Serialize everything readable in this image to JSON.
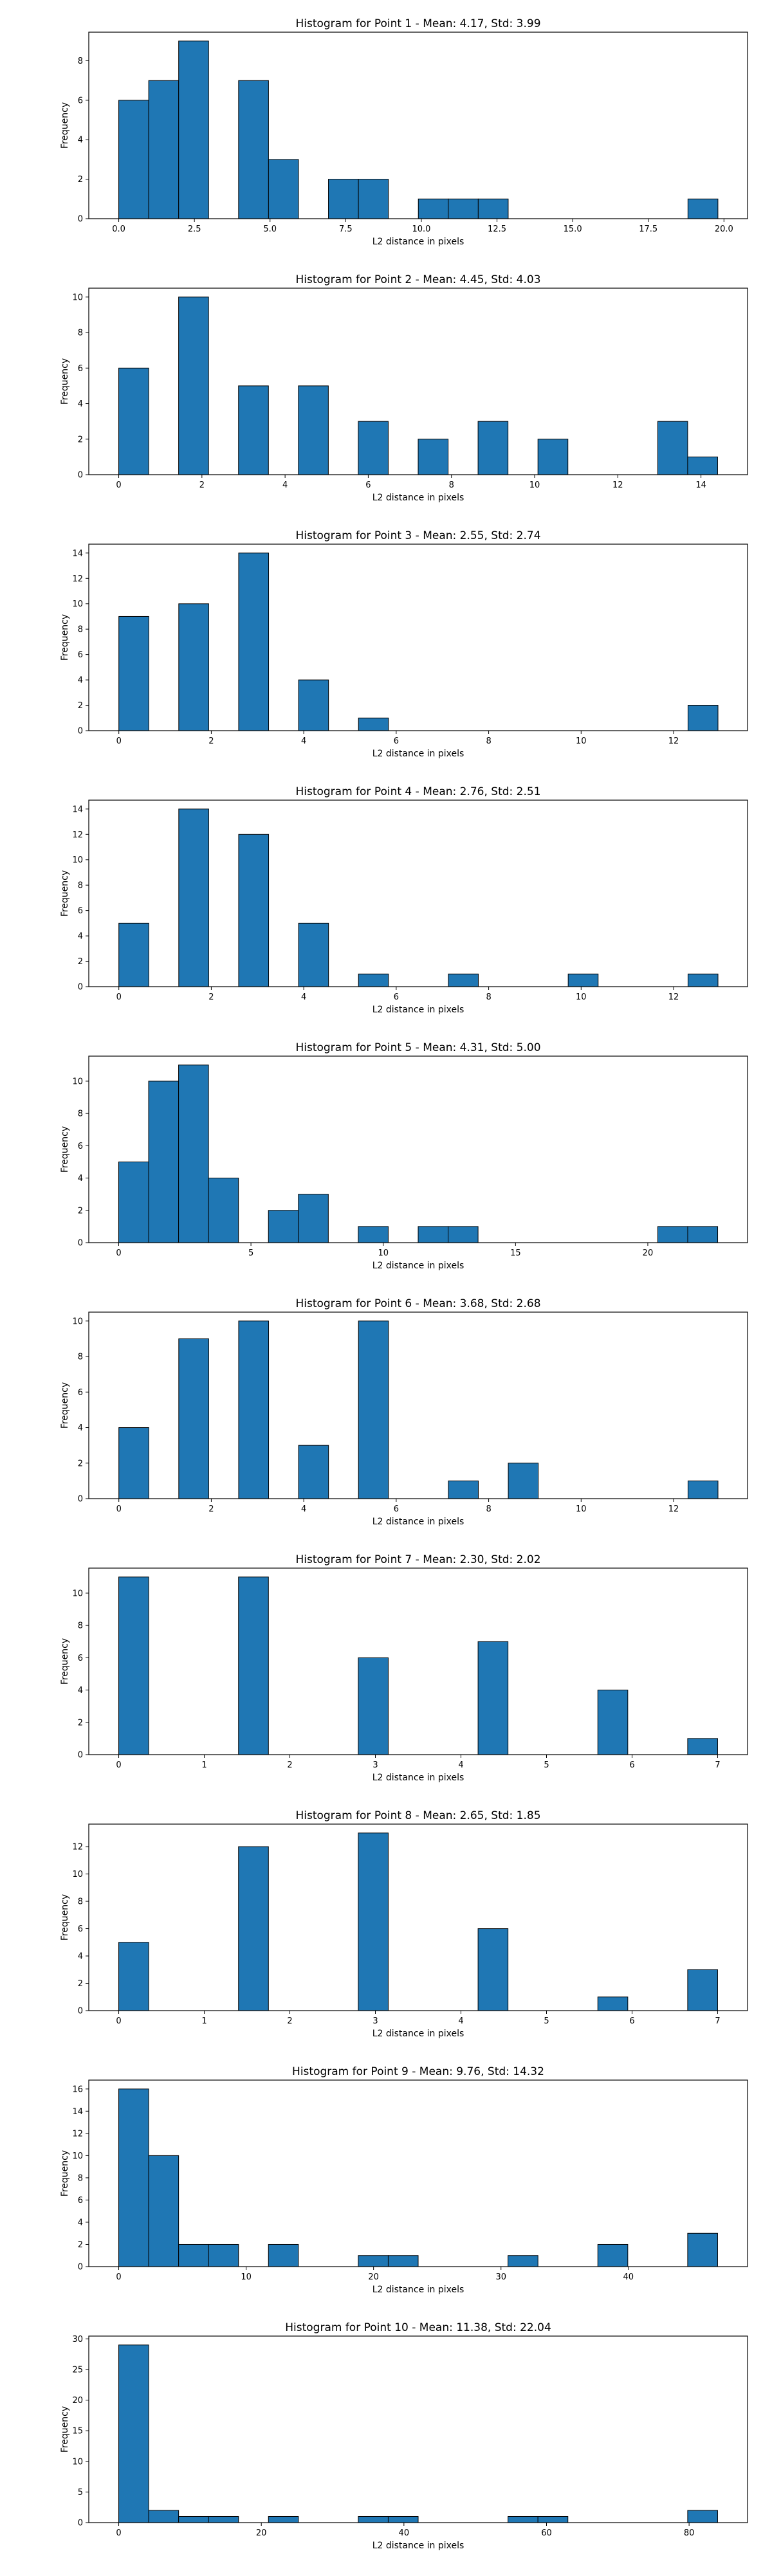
{
  "colors": {
    "bar": "#1f77b4",
    "edge": "#000000",
    "axes": "#000000",
    "background": "#ffffff"
  },
  "chart_data": [
    {
      "type": "bar",
      "title": "Histogram for Point 1 - Mean: 4.17, Std: 3.99",
      "xlabel": "L2 distance in pixels",
      "ylabel": "Frequency",
      "xlim": [
        -0.99,
        20.78
      ],
      "ylim": [
        0,
        9.45
      ],
      "xticks": [
        {
          "v": 0,
          "t": "0.0"
        },
        {
          "v": 2.5,
          "t": "2.5"
        },
        {
          "v": 5,
          "t": "5.0"
        },
        {
          "v": 7.5,
          "t": "7.5"
        },
        {
          "v": 10,
          "t": "10.0"
        },
        {
          "v": 12.5,
          "t": "12.5"
        },
        {
          "v": 15,
          "t": "15.0"
        },
        {
          "v": 17.5,
          "t": "17.5"
        },
        {
          "v": 20,
          "t": "20.0"
        }
      ],
      "yticks": [
        {
          "v": 0,
          "t": "0"
        },
        {
          "v": 2,
          "t": "2"
        },
        {
          "v": 4,
          "t": "4"
        },
        {
          "v": 6,
          "t": "6"
        },
        {
          "v": 8,
          "t": "8"
        }
      ],
      "bins": [
        0,
        0.99,
        1.98,
        2.97,
        3.96,
        4.95,
        5.94,
        6.93,
        7.92,
        8.91,
        9.9,
        10.89,
        11.88,
        12.87,
        13.86,
        14.85,
        15.84,
        16.83,
        17.82,
        18.81,
        19.8
      ],
      "counts": [
        6,
        7,
        9,
        0,
        7,
        3,
        0,
        2,
        2,
        0,
        1,
        1,
        1,
        0,
        0,
        0,
        0,
        0,
        0,
        1
      ]
    },
    {
      "type": "bar",
      "title": "Histogram for Point 2 - Mean: 4.45, Std: 4.03",
      "xlabel": "L2 distance in pixels",
      "ylabel": "Frequency",
      "xlim": [
        -0.72,
        15.12
      ],
      "ylim": [
        0,
        10.5
      ],
      "xticks": [
        {
          "v": 0,
          "t": "0"
        },
        {
          "v": 2,
          "t": "2"
        },
        {
          "v": 4,
          "t": "4"
        },
        {
          "v": 6,
          "t": "6"
        },
        {
          "v": 8,
          "t": "8"
        },
        {
          "v": 10,
          "t": "10"
        },
        {
          "v": 12,
          "t": "12"
        },
        {
          "v": 14,
          "t": "14"
        }
      ],
      "yticks": [
        {
          "v": 0,
          "t": "0"
        },
        {
          "v": 2,
          "t": "2"
        },
        {
          "v": 4,
          "t": "4"
        },
        {
          "v": 6,
          "t": "6"
        },
        {
          "v": 8,
          "t": "8"
        },
        {
          "v": 10,
          "t": "10"
        }
      ],
      "bins": [
        0,
        0.72,
        1.44,
        2.16,
        2.88,
        3.6,
        4.32,
        5.04,
        5.76,
        6.48,
        7.2,
        7.92,
        8.64,
        9.36,
        10.08,
        10.8,
        11.52,
        12.24,
        12.96,
        13.68,
        14.4
      ],
      "counts": [
        6,
        0,
        10,
        0,
        5,
        0,
        5,
        0,
        3,
        0,
        2,
        0,
        3,
        0,
        2,
        0,
        0,
        0,
        3,
        1
      ]
    },
    {
      "type": "bar",
      "title": "Histogram for Point 3 - Mean: 2.55, Std: 2.74",
      "xlabel": "L2 distance in pixels",
      "ylabel": "Frequency",
      "xlim": [
        -0.65,
        13.6
      ],
      "ylim": [
        0,
        14.7
      ],
      "xticks": [
        {
          "v": 0,
          "t": "0"
        },
        {
          "v": 2,
          "t": "2"
        },
        {
          "v": 4,
          "t": "4"
        },
        {
          "v": 6,
          "t": "6"
        },
        {
          "v": 8,
          "t": "8"
        },
        {
          "v": 10,
          "t": "10"
        },
        {
          "v": 12,
          "t": "12"
        }
      ],
      "yticks": [
        {
          "v": 0,
          "t": "0"
        },
        {
          "v": 2,
          "t": "2"
        },
        {
          "v": 4,
          "t": "4"
        },
        {
          "v": 6,
          "t": "6"
        },
        {
          "v": 8,
          "t": "8"
        },
        {
          "v": 10,
          "t": "10"
        },
        {
          "v": 12,
          "t": "12"
        },
        {
          "v": 14,
          "t": "14"
        }
      ],
      "bins": [
        0,
        0.648,
        1.296,
        1.944,
        2.592,
        3.24,
        3.888,
        4.536,
        5.184,
        5.832,
        6.48,
        7.128,
        7.776,
        8.424,
        9.072,
        9.72,
        10.368,
        11.016,
        11.664,
        12.312,
        12.96
      ],
      "counts": [
        9,
        0,
        10,
        0,
        14,
        0,
        4,
        0,
        1,
        0,
        0,
        0,
        0,
        0,
        0,
        0,
        0,
        0,
        0,
        2
      ]
    },
    {
      "type": "bar",
      "title": "Histogram for Point 4 - Mean: 2.76, Std: 2.51",
      "xlabel": "L2 distance in pixels",
      "ylabel": "Frequency",
      "xlim": [
        -0.65,
        13.6
      ],
      "ylim": [
        0,
        14.7
      ],
      "xticks": [
        {
          "v": 0,
          "t": "0"
        },
        {
          "v": 2,
          "t": "2"
        },
        {
          "v": 4,
          "t": "4"
        },
        {
          "v": 6,
          "t": "6"
        },
        {
          "v": 8,
          "t": "8"
        },
        {
          "v": 10,
          "t": "10"
        },
        {
          "v": 12,
          "t": "12"
        }
      ],
      "yticks": [
        {
          "v": 0,
          "t": "0"
        },
        {
          "v": 2,
          "t": "2"
        },
        {
          "v": 4,
          "t": "4"
        },
        {
          "v": 6,
          "t": "6"
        },
        {
          "v": 8,
          "t": "8"
        },
        {
          "v": 10,
          "t": "10"
        },
        {
          "v": 12,
          "t": "12"
        },
        {
          "v": 14,
          "t": "14"
        }
      ],
      "bins": [
        0,
        0.648,
        1.296,
        1.944,
        2.592,
        3.24,
        3.888,
        4.536,
        5.184,
        5.832,
        6.48,
        7.128,
        7.776,
        8.424,
        9.072,
        9.72,
        10.368,
        11.016,
        11.664,
        12.312,
        12.96
      ],
      "counts": [
        5,
        0,
        14,
        0,
        12,
        0,
        5,
        0,
        1,
        0,
        0,
        1,
        0,
        0,
        0,
        1,
        0,
        0,
        0,
        1
      ]
    },
    {
      "type": "bar",
      "title": "Histogram for Point 5 - Mean: 4.31, Std: 5.00",
      "xlabel": "L2 distance in pixels",
      "ylabel": "Frequency",
      "xlim": [
        -1.13,
        23.77
      ],
      "ylim": [
        0,
        11.55
      ],
      "xticks": [
        {
          "v": 0,
          "t": "0"
        },
        {
          "v": 5,
          "t": "5"
        },
        {
          "v": 10,
          "t": "10"
        },
        {
          "v": 15,
          "t": "15"
        },
        {
          "v": 20,
          "t": "20"
        }
      ],
      "yticks": [
        {
          "v": 0,
          "t": "0"
        },
        {
          "v": 2,
          "t": "2"
        },
        {
          "v": 4,
          "t": "4"
        },
        {
          "v": 6,
          "t": "6"
        },
        {
          "v": 8,
          "t": "8"
        },
        {
          "v": 10,
          "t": "10"
        }
      ],
      "bins": [
        0,
        1.132,
        2.264,
        3.396,
        4.528,
        5.66,
        6.792,
        7.924,
        9.056,
        10.188,
        11.32,
        12.452,
        13.584,
        14.716,
        15.848,
        16.98,
        18.112,
        19.244,
        20.376,
        21.508,
        22.64
      ],
      "counts": [
        5,
        10,
        11,
        4,
        0,
        2,
        3,
        0,
        1,
        0,
        1,
        1,
        0,
        0,
        0,
        0,
        0,
        0,
        1,
        1
      ]
    },
    {
      "type": "bar",
      "title": "Histogram for Point 6 - Mean: 3.68, Std: 2.68",
      "xlabel": "L2 distance in pixels",
      "ylabel": "Frequency",
      "xlim": [
        -0.65,
        13.6
      ],
      "ylim": [
        0,
        10.5
      ],
      "xticks": [
        {
          "v": 0,
          "t": "0"
        },
        {
          "v": 2,
          "t": "2"
        },
        {
          "v": 4,
          "t": "4"
        },
        {
          "v": 6,
          "t": "6"
        },
        {
          "v": 8,
          "t": "8"
        },
        {
          "v": 10,
          "t": "10"
        },
        {
          "v": 12,
          "t": "12"
        }
      ],
      "yticks": [
        {
          "v": 0,
          "t": "0"
        },
        {
          "v": 2,
          "t": "2"
        },
        {
          "v": 4,
          "t": "4"
        },
        {
          "v": 6,
          "t": "6"
        },
        {
          "v": 8,
          "t": "8"
        },
        {
          "v": 10,
          "t": "10"
        }
      ],
      "bins": [
        0,
        0.648,
        1.296,
        1.944,
        2.592,
        3.24,
        3.888,
        4.536,
        5.184,
        5.832,
        6.48,
        7.128,
        7.776,
        8.424,
        9.072,
        9.72,
        10.368,
        11.016,
        11.664,
        12.312,
        12.96
      ],
      "counts": [
        4,
        0,
        9,
        0,
        10,
        0,
        3,
        0,
        10,
        0,
        0,
        1,
        0,
        2,
        0,
        0,
        0,
        0,
        0,
        1
      ]
    },
    {
      "type": "bar",
      "title": "Histogram for Point 7 - Mean: 2.30, Std: 2.02",
      "xlabel": "L2 distance in pixels",
      "ylabel": "Frequency",
      "xlim": [
        -0.35,
        7.35
      ],
      "ylim": [
        0,
        11.55
      ],
      "xticks": [
        {
          "v": 0,
          "t": "0"
        },
        {
          "v": 1,
          "t": "1"
        },
        {
          "v": 2,
          "t": "2"
        },
        {
          "v": 3,
          "t": "3"
        },
        {
          "v": 4,
          "t": "4"
        },
        {
          "v": 5,
          "t": "5"
        },
        {
          "v": 6,
          "t": "6"
        },
        {
          "v": 7,
          "t": "7"
        }
      ],
      "yticks": [
        {
          "v": 0,
          "t": "0"
        },
        {
          "v": 2,
          "t": "2"
        },
        {
          "v": 4,
          "t": "4"
        },
        {
          "v": 6,
          "t": "6"
        },
        {
          "v": 8,
          "t": "8"
        },
        {
          "v": 10,
          "t": "10"
        }
      ],
      "bins": [
        0,
        0.35,
        0.7,
        1.05,
        1.4,
        1.75,
        2.1,
        2.45,
        2.8,
        3.15,
        3.5,
        3.85,
        4.2,
        4.55,
        4.9,
        5.25,
        5.6,
        5.95,
        6.3,
        6.65,
        7.0
      ],
      "counts": [
        11,
        0,
        0,
        0,
        11,
        0,
        0,
        0,
        6,
        0,
        0,
        0,
        7,
        0,
        0,
        0,
        4,
        0,
        0,
        1
      ]
    },
    {
      "type": "bar",
      "title": "Histogram for Point 8 - Mean: 2.65, Std: 1.85",
      "xlabel": "L2 distance in pixels",
      "ylabel": "Frequency",
      "xlim": [
        -0.35,
        7.35
      ],
      "ylim": [
        0,
        13.65
      ],
      "xticks": [
        {
          "v": 0,
          "t": "0"
        },
        {
          "v": 1,
          "t": "1"
        },
        {
          "v": 2,
          "t": "2"
        },
        {
          "v": 3,
          "t": "3"
        },
        {
          "v": 4,
          "t": "4"
        },
        {
          "v": 5,
          "t": "5"
        },
        {
          "v": 6,
          "t": "6"
        },
        {
          "v": 7,
          "t": "7"
        }
      ],
      "yticks": [
        {
          "v": 0,
          "t": "0"
        },
        {
          "v": 2,
          "t": "2"
        },
        {
          "v": 4,
          "t": "4"
        },
        {
          "v": 6,
          "t": "6"
        },
        {
          "v": 8,
          "t": "8"
        },
        {
          "v": 10,
          "t": "10"
        },
        {
          "v": 12,
          "t": "12"
        }
      ],
      "bins": [
        0,
        0.35,
        0.7,
        1.05,
        1.4,
        1.75,
        2.1,
        2.45,
        2.8,
        3.15,
        3.5,
        3.85,
        4.2,
        4.55,
        4.9,
        5.25,
        5.6,
        5.95,
        6.3,
        6.65,
        7.0
      ],
      "counts": [
        5,
        0,
        0,
        0,
        12,
        0,
        0,
        0,
        13,
        0,
        0,
        0,
        6,
        0,
        0,
        0,
        1,
        0,
        0,
        3
      ]
    },
    {
      "type": "bar",
      "title": "Histogram for Point 9 - Mean: 9.76, Std: 14.32",
      "xlabel": "L2 distance in pixels",
      "ylabel": "Frequency",
      "xlim": [
        -2.35,
        49.35
      ],
      "ylim": [
        0,
        16.8
      ],
      "xticks": [
        {
          "v": 0,
          "t": "0"
        },
        {
          "v": 10,
          "t": "10"
        },
        {
          "v": 20,
          "t": "20"
        },
        {
          "v": 30,
          "t": "30"
        },
        {
          "v": 40,
          "t": "40"
        }
      ],
      "yticks": [
        {
          "v": 0,
          "t": "0"
        },
        {
          "v": 2,
          "t": "2"
        },
        {
          "v": 4,
          "t": "4"
        },
        {
          "v": 6,
          "t": "6"
        },
        {
          "v": 8,
          "t": "8"
        },
        {
          "v": 10,
          "t": "10"
        },
        {
          "v": 12,
          "t": "12"
        },
        {
          "v": 14,
          "t": "14"
        },
        {
          "v": 16,
          "t": "16"
        }
      ],
      "bins": [
        0,
        2.35,
        4.7,
        7.05,
        9.4,
        11.75,
        14.1,
        16.45,
        18.8,
        21.15,
        23.5,
        25.85,
        28.2,
        30.55,
        32.9,
        35.25,
        37.6,
        39.95,
        42.3,
        44.65,
        47.0
      ],
      "counts": [
        16,
        10,
        2,
        2,
        0,
        2,
        0,
        0,
        1,
        1,
        0,
        0,
        0,
        1,
        0,
        0,
        2,
        0,
        0,
        3
      ]
    },
    {
      "type": "bar",
      "title": "Histogram for Point 10 - Mean: 11.38, Std: 22.04",
      "xlabel": "L2 distance in pixels",
      "ylabel": "Frequency",
      "xlim": [
        -4.2,
        88.2
      ],
      "ylim": [
        0,
        30.45
      ],
      "xticks": [
        {
          "v": 0,
          "t": "0"
        },
        {
          "v": 20,
          "t": "20"
        },
        {
          "v": 40,
          "t": "40"
        },
        {
          "v": 60,
          "t": "60"
        },
        {
          "v": 80,
          "t": "80"
        }
      ],
      "yticks": [
        {
          "v": 0,
          "t": "0"
        },
        {
          "v": 5,
          "t": "5"
        },
        {
          "v": 10,
          "t": "10"
        },
        {
          "v": 15,
          "t": "15"
        },
        {
          "v": 20,
          "t": "20"
        },
        {
          "v": 25,
          "t": "25"
        },
        {
          "v": 30,
          "t": "30"
        }
      ],
      "bins": [
        0,
        4.2,
        8.4,
        12.6,
        16.8,
        21.0,
        25.2,
        29.4,
        33.6,
        37.8,
        42.0,
        46.2,
        50.4,
        54.6,
        58.8,
        63.0,
        67.2,
        71.4,
        75.6,
        79.8,
        84.0
      ],
      "counts": [
        29,
        2,
        1,
        1,
        0,
        1,
        0,
        0,
        1,
        1,
        0,
        0,
        0,
        1,
        1,
        0,
        0,
        0,
        0,
        2
      ]
    }
  ]
}
